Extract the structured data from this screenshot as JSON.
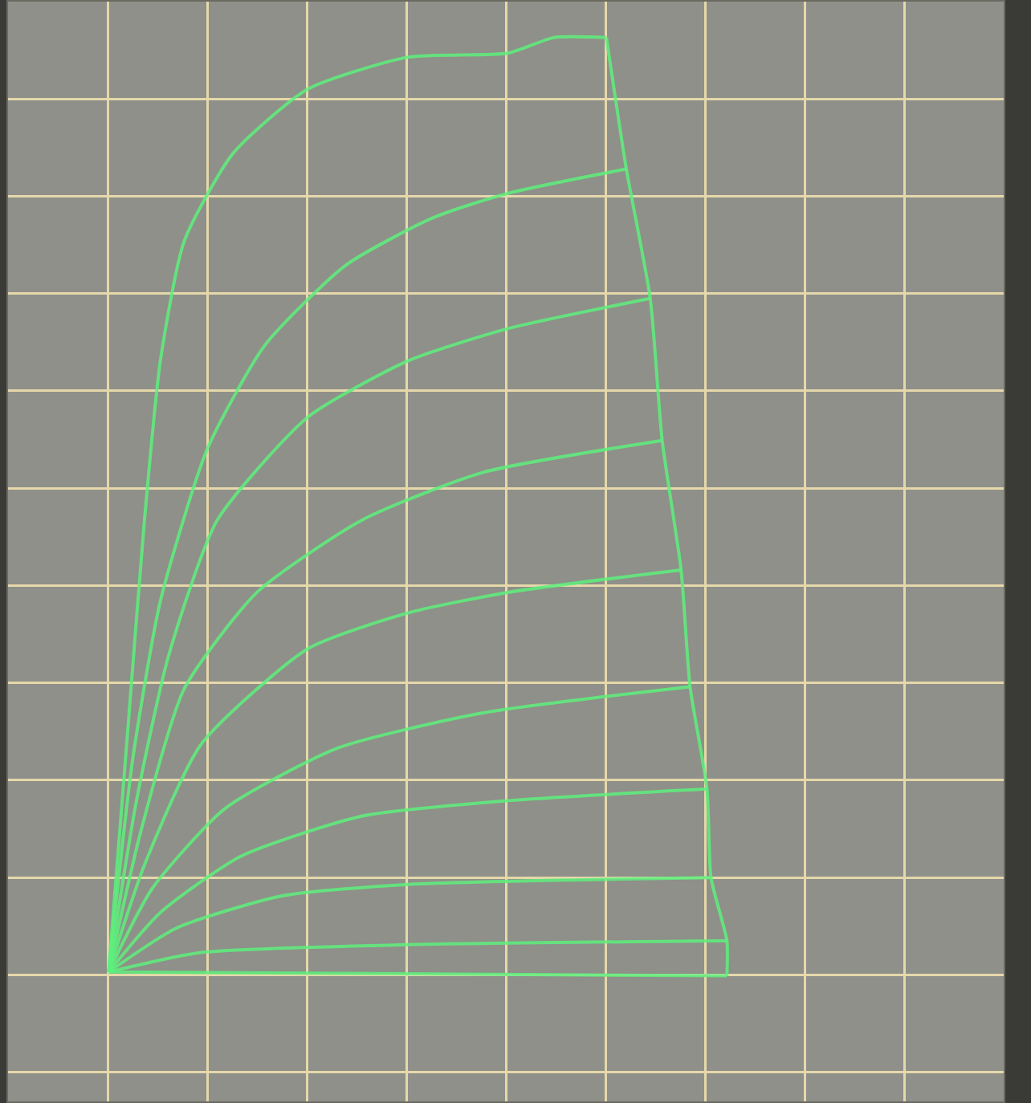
{
  "chart_data": {
    "type": "line",
    "color": "#5ef07c",
    "grid": true,
    "tick_labels": false,
    "xlim": [
      0,
      10
    ],
    "ylim": [
      -0.3,
      11
    ],
    "xticks": [
      0,
      1,
      2,
      3,
      4,
      5,
      6,
      7,
      8,
      9,
      10
    ],
    "yticks": [
      0,
      1,
      2,
      3,
      4,
      5,
      6,
      7,
      8,
      9,
      10
    ],
    "series": [
      {
        "x": [
          1.01,
          1.21,
          1.37,
          1.53,
          1.77,
          2.26,
          3.01,
          4.02,
          5.02,
          5.48,
          6.01
        ],
        "values": [
          1.03,
          3.61,
          5.67,
          7.31,
          8.54,
          9.44,
          10.1,
          10.43,
          10.47,
          10.63,
          10.63
        ]
      },
      {
        "x": [
          1.01,
          1.25,
          1.53,
          2.0,
          2.58,
          3.39,
          4.27,
          5.02,
          6.21
        ],
        "values": [
          1.03,
          3.2,
          4.84,
          6.4,
          7.47,
          8.29,
          8.78,
          9.03,
          9.28
        ]
      },
      {
        "x": [
          1.01,
          1.29,
          1.61,
          2.1,
          3.01,
          4.02,
          5.02,
          6.45
        ],
        "values": [
          1.03,
          2.79,
          4.27,
          5.67,
          6.73,
          7.31,
          7.64,
          7.95
        ]
      },
      {
        "x": [
          1.01,
          1.33,
          1.77,
          2.5,
          3.55,
          4.76,
          6.57
        ],
        "values": [
          1.03,
          2.46,
          3.94,
          4.93,
          5.67,
          6.16,
          6.49
        ]
      },
      {
        "x": [
          1.01,
          1.37,
          1.94,
          3.01,
          4.02,
          5.02,
          6.76
        ],
        "values": [
          1.03,
          2.13,
          3.37,
          4.35,
          4.72,
          4.93,
          5.16
        ]
      },
      {
        "x": [
          1.01,
          1.45,
          2.18,
          3.31,
          4.76,
          6.85
        ],
        "values": [
          1.03,
          1.89,
          2.71,
          3.33,
          3.69,
          3.96
        ]
      },
      {
        "x": [
          1.01,
          1.53,
          2.34,
          3.55,
          5.02,
          7.02
        ],
        "values": [
          1.03,
          1.64,
          2.22,
          2.63,
          2.79,
          2.91
        ]
      },
      {
        "x": [
          1.01,
          1.69,
          2.74,
          4.02,
          7.06
        ],
        "values": [
          1.03,
          1.48,
          1.81,
          1.93,
          2.0
        ]
      },
      {
        "x": [
          1.01,
          1.94,
          4.02,
          7.22
        ],
        "values": [
          1.03,
          1.23,
          1.31,
          1.35
        ]
      },
      {
        "x": [
          1.01,
          7.22
        ],
        "values": [
          1.03,
          0.99
        ]
      },
      {
        "x": [
          6.01,
          6.21,
          6.45,
          6.57,
          6.76,
          6.85,
          7.02,
          7.06,
          7.22,
          7.22
        ],
        "values": [
          10.63,
          9.28,
          7.95,
          6.49,
          5.16,
          3.96,
          2.91,
          2.0,
          1.35,
          0.99
        ]
      }
    ]
  }
}
